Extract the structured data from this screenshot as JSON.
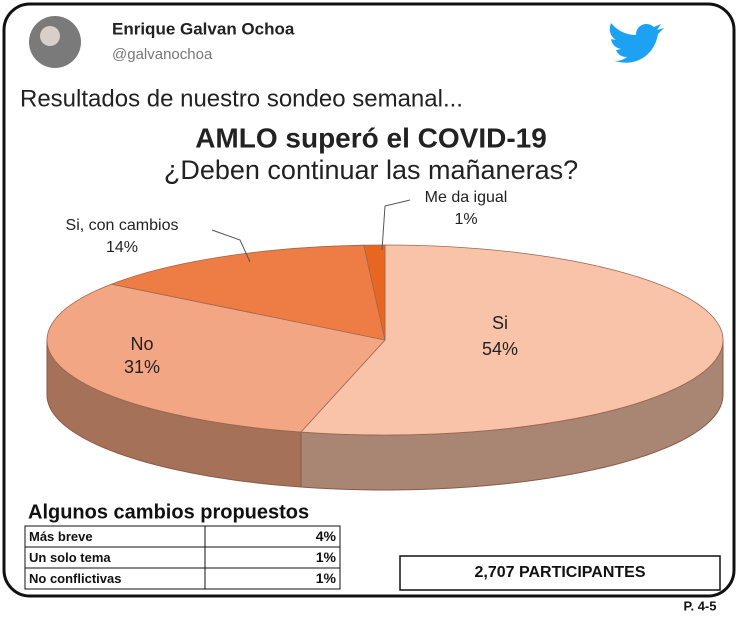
{
  "tweet": {
    "name": "Enrique Galvan Ochoa",
    "handle": "@galvanochoa",
    "text": "Resultados de nuestro sondeo semanal..."
  },
  "chart_data": {
    "type": "pie",
    "title": "AMLO superó el COVID-19",
    "subtitle": "¿Deben continuar las mañaneras?",
    "categories": [
      "Si",
      "No",
      "Si, con cambios",
      "Me da igual"
    ],
    "values": [
      54,
      31,
      14,
      1
    ],
    "value_labels": [
      "54%",
      "31%",
      "14%",
      "1%"
    ],
    "colors": [
      "#f9c3aa",
      "#f2a683",
      "#ee7d45",
      "#e8661f"
    ]
  },
  "changes": {
    "title": "Algunos cambios propuestos",
    "rows": [
      [
        "Más breve",
        "4%"
      ],
      [
        "Un solo tema",
        "1%"
      ],
      [
        "No conflictivas",
        "1%"
      ]
    ]
  },
  "participants": "2,707 PARTICIPANTES",
  "page_ref": "P. 4-5"
}
